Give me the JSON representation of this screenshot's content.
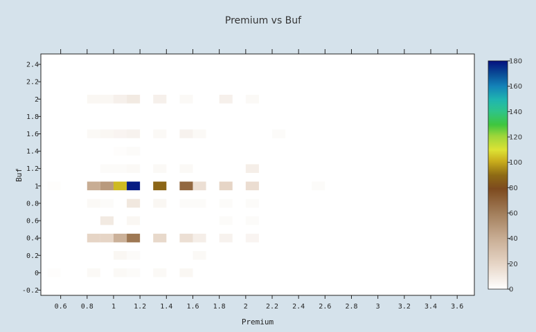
{
  "chart_data": {
    "type": "heatmap",
    "title": "Premium vs Buf",
    "xlabel": "Premium",
    "ylabel": "Buf",
    "xlim": [
      0.45,
      3.73
    ],
    "ylim": [
      -0.26,
      2.52
    ],
    "x_ticks": [
      "0.6",
      "0.8",
      "1",
      "1.2",
      "1.4",
      "1.6",
      "1.8",
      "2",
      "2.2",
      "2.4",
      "2.6",
      "2.8",
      "3",
      "3.2",
      "3.4",
      "3.6"
    ],
    "y_ticks": [
      "-0.2",
      "0",
      "0.2",
      "0.4",
      "0.6",
      "0.8",
      "1",
      "1.2",
      "1.4",
      "1.6",
      "1.8",
      "2",
      "2.2",
      "2.4"
    ],
    "bin_width": {
      "x": 0.1,
      "y": 0.1
    },
    "grid": false,
    "colorbar": {
      "ticks": [
        "0",
        "20",
        "40",
        "60",
        "80",
        "100",
        "120",
        "140",
        "160",
        "180"
      ],
      "zmin": 0,
      "zmax": 180,
      "colorscale": [
        [
          0,
          "#ffffff"
        ],
        [
          0.11,
          "#e6d5c6"
        ],
        [
          0.22,
          "#c9ae95"
        ],
        [
          0.33,
          "#a37f5c"
        ],
        [
          0.44,
          "#7d4a1e"
        ],
        [
          0.5,
          "#8e6b14"
        ],
        [
          0.56,
          "#c9ad1c"
        ],
        [
          0.61,
          "#dde234"
        ],
        [
          0.67,
          "#9ed63a"
        ],
        [
          0.72,
          "#3fc63e"
        ],
        [
          0.78,
          "#2ec48a"
        ],
        [
          0.83,
          "#1fb5b0"
        ],
        [
          0.89,
          "#1382b8"
        ],
        [
          0.94,
          "#0a4f98"
        ],
        [
          1,
          "#05107e"
        ]
      ]
    },
    "cells": [
      [
        0.55,
        0.0,
        1
      ],
      [
        0.85,
        0.0,
        3
      ],
      [
        1.05,
        0.0,
        3
      ],
      [
        1.15,
        0.0,
        2
      ],
      [
        1.35,
        0.0,
        3
      ],
      [
        1.55,
        0.0,
        4
      ],
      [
        1.05,
        0.2,
        4
      ],
      [
        1.15,
        0.2,
        2
      ],
      [
        1.65,
        0.2,
        3
      ],
      [
        0.85,
        0.4,
        20
      ],
      [
        0.95,
        0.4,
        20
      ],
      [
        1.05,
        0.4,
        38
      ],
      [
        1.15,
        0.4,
        62
      ],
      [
        1.35,
        0.4,
        18
      ],
      [
        1.55,
        0.4,
        15
      ],
      [
        1.65,
        0.4,
        8
      ],
      [
        1.85,
        0.4,
        6
      ],
      [
        2.05,
        0.4,
        5
      ],
      [
        0.95,
        0.6,
        10
      ],
      [
        1.15,
        0.6,
        4
      ],
      [
        1.85,
        0.6,
        2
      ],
      [
        2.05,
        0.6,
        2
      ],
      [
        0.85,
        0.8,
        3
      ],
      [
        0.95,
        0.8,
        2
      ],
      [
        1.15,
        0.8,
        11
      ],
      [
        1.35,
        0.8,
        4
      ],
      [
        1.55,
        0.8,
        2
      ],
      [
        1.65,
        0.8,
        2
      ],
      [
        1.85,
        0.8,
        2
      ],
      [
        2.05,
        0.8,
        2
      ],
      [
        0.55,
        1.0,
        1
      ],
      [
        0.85,
        1.0,
        40
      ],
      [
        0.95,
        1.0,
        48
      ],
      [
        1.05,
        1.0,
        103
      ],
      [
        1.15,
        1.0,
        178
      ],
      [
        1.35,
        1.0,
        88
      ],
      [
        1.55,
        1.0,
        68
      ],
      [
        1.65,
        1.0,
        15
      ],
      [
        1.85,
        1.0,
        20
      ],
      [
        2.05,
        1.0,
        16
      ],
      [
        2.55,
        1.0,
        2
      ],
      [
        0.95,
        1.2,
        2
      ],
      [
        1.05,
        1.2,
        2
      ],
      [
        1.15,
        1.2,
        3
      ],
      [
        1.35,
        1.2,
        3
      ],
      [
        1.55,
        1.2,
        3
      ],
      [
        2.05,
        1.2,
        8
      ],
      [
        1.05,
        1.4,
        1
      ],
      [
        1.15,
        1.4,
        2
      ],
      [
        0.85,
        1.6,
        3
      ],
      [
        0.95,
        1.6,
        4
      ],
      [
        1.05,
        1.6,
        5
      ],
      [
        1.15,
        1.6,
        6
      ],
      [
        1.35,
        1.6,
        3
      ],
      [
        1.55,
        1.6,
        6
      ],
      [
        1.65,
        1.6,
        3
      ],
      [
        2.25,
        1.6,
        2
      ],
      [
        0.85,
        2.0,
        4
      ],
      [
        0.95,
        2.0,
        4
      ],
      [
        1.05,
        2.0,
        7
      ],
      [
        1.15,
        2.0,
        10
      ],
      [
        1.35,
        2.0,
        7
      ],
      [
        1.55,
        2.0,
        3
      ],
      [
        1.85,
        2.0,
        7
      ],
      [
        2.05,
        2.0,
        3
      ]
    ]
  }
}
